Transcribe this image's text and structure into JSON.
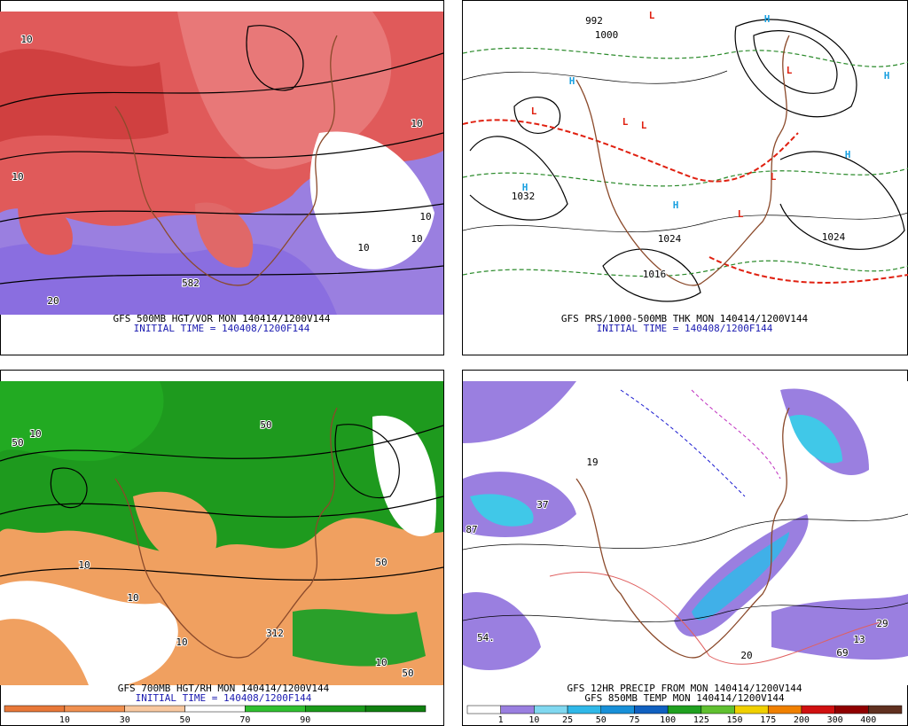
{
  "panels": [
    {
      "caption": "GFS 500MB HGT/VOR MON 140414/1200V144",
      "initial_time": "INITIAL TIME = 140408/1200F144",
      "labels": [
        "10",
        "10",
        "10",
        "20",
        "10",
        "10",
        "582",
        "10"
      ]
    },
    {
      "caption": "GFS PRS/1000-500MB THK MON 140414/1200V144",
      "initial_time": "INITIAL TIME = 140408/1200F144",
      "labels": [
        "H",
        "H",
        "H",
        "H",
        "H",
        "H",
        "L",
        "L",
        "L",
        "L",
        "L",
        "L",
        "L",
        "1032",
        "1024",
        "1024",
        "1016",
        "992",
        "1000"
      ]
    },
    {
      "caption": "GFS 700MB HGT/RH MON 140414/1200V144",
      "initial_time": "INITIAL TIME = 140408/1200F144",
      "labels": [
        "10",
        "10",
        "50",
        "50",
        "10",
        "10",
        "50",
        "312",
        "50",
        "10"
      ]
    },
    {
      "caption": "GFS 12HR PRECIP FROM MON 140414/1200V144",
      "initial_time": "GFS 850MB TEMP MON 140414/1200V144",
      "labels": [
        "54.",
        "87",
        "37",
        "19",
        "13",
        "29",
        "20",
        "69"
      ]
    }
  ],
  "colorbars": [
    {
      "labels": [
        "10",
        "30",
        "50",
        "70",
        "90"
      ]
    },
    {
      "labels": [
        "1",
        "10",
        "25",
        "50",
        "75",
        "100",
        "125",
        "150",
        "175",
        "200",
        "300",
        "400"
      ]
    }
  ]
}
